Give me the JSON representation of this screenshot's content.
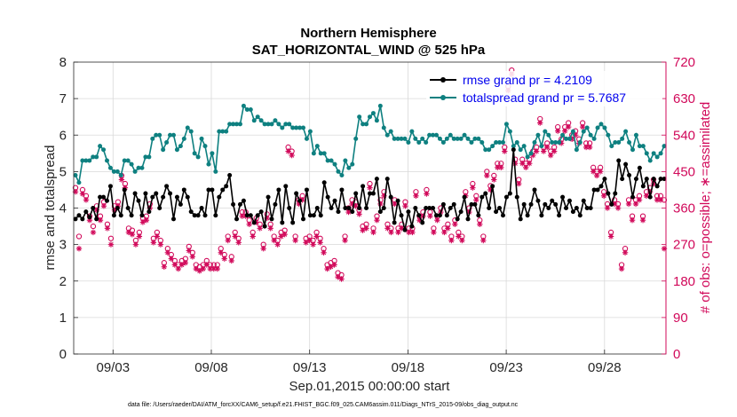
{
  "chart_data": {
    "type": "line",
    "title": "Northern Hemisphere",
    "subtitle": "SAT_HORIZONTAL_WIND @ 525 hPa",
    "xlabel": "Sep.01,2015 00:00:00 start",
    "ylabel_left": "rmse and totalspread",
    "ylabel_right": "# of obs: o=possible; ∗=assimilated",
    "footnote": "data file: /Users/raeder/DAI/ATM_forcXX/CAM6_setup/f.e21.FHIST_BGC.f09_025.CAM6assim.011/Diags_NTrS_2015-09/obs_diag_output.nc",
    "x_tick_labels": [
      "09/03",
      "09/08",
      "09/13",
      "09/18",
      "09/23",
      "09/28"
    ],
    "x_tick_days": [
      3,
      8,
      13,
      18,
      23,
      28
    ],
    "x_range_days": [
      1.0,
      31.125
    ],
    "ylim_left": [
      0,
      8
    ],
    "yticks_left": [
      "0",
      "1",
      "2",
      "3",
      "4",
      "5",
      "6",
      "7",
      "8"
    ],
    "ylim_right": [
      0,
      720
    ],
    "yticks_right": [
      "0",
      "90",
      "180",
      "270",
      "360",
      "450",
      "540",
      "630",
      "720"
    ],
    "grid": true,
    "legend_position": "top-right",
    "colors": {
      "rmse": "#000000",
      "spread": "#0e8080",
      "obs": "#d1095a",
      "axis_right": "#d1095a",
      "legend_text": "#0000ee"
    },
    "series": [
      {
        "name": "rmse grand pr = 4.2109",
        "color": "#000000",
        "values": [
          3.7,
          3.8,
          3.7,
          3.9,
          3.75,
          4.0,
          3.7,
          4.3,
          4.3,
          4.2,
          4.6,
          3.8,
          4.0,
          3.8,
          4.5,
          4.0,
          3.8,
          4.4,
          4.2,
          3.8,
          4.4,
          3.9,
          4.3,
          4.4,
          4.0,
          4.3,
          4.6,
          4.4,
          3.7,
          4.3,
          4.1,
          4.5,
          4.3,
          3.9,
          3.8,
          3.8,
          4.0,
          3.8,
          4.5,
          4.5,
          3.8,
          4.3,
          4.5,
          4.6,
          4.9,
          4.1,
          3.7,
          4.1,
          4.2,
          3.8,
          3.8,
          3.6,
          3.8,
          3.9,
          3.5,
          4.3,
          3.7,
          4.1,
          4.5,
          3.6,
          4.6,
          4.0,
          3.6,
          4.4,
          4.2,
          3.7,
          4.5,
          3.8,
          3.8,
          4.0,
          3.8,
          4.7,
          4.3,
          4.0,
          4.2,
          3.9,
          4.5,
          4.0,
          4.0,
          3.9,
          4.4,
          4.0,
          4.6,
          4.0,
          4.4,
          4.4,
          4.8,
          3.9,
          4.0,
          4.8,
          4.3,
          3.6,
          4.2,
          3.8,
          3.4,
          3.9,
          3.5,
          4.0,
          3.8,
          3.6,
          4.0,
          4.0,
          4.0,
          3.8,
          3.8,
          4.1,
          3.8,
          4.0,
          4.1,
          3.7,
          3.9,
          4.3,
          3.7,
          4.1,
          4.1,
          3.8,
          4.3,
          4.4,
          4.0,
          4.6,
          3.9,
          4.0,
          3.8,
          4.3,
          4.4,
          5.6,
          4.3,
          3.7,
          4.1,
          3.8,
          4.1,
          4.5,
          4.2,
          3.8,
          4.1,
          4.0,
          4.2,
          4.1,
          3.8,
          4.3,
          4.0,
          4.2,
          3.9,
          4.0,
          3.8,
          4.2,
          4.0,
          4.0,
          4.5,
          4.5,
          4.6,
          4.8,
          4.4,
          4.1,
          4.4,
          5.3,
          4.8,
          5.2,
          4.9,
          4.3,
          4.8,
          5.1,
          4.6,
          4.8,
          4.3,
          4.8,
          4.6,
          4.8,
          4.8
        ]
      },
      {
        "name": "totalspread grand pr = 5.7687",
        "color": "#0e8080",
        "values": [
          4.9,
          4.7,
          5.3,
          5.3,
          5.3,
          5.4,
          5.4,
          5.7,
          5.6,
          5.3,
          5.1,
          5.0,
          5.0,
          4.9,
          5.3,
          5.3,
          5.2,
          5.0,
          5.1,
          5.1,
          5.4,
          5.4,
          5.9,
          6.0,
          6.0,
          5.6,
          5.8,
          6.0,
          6.0,
          5.6,
          5.7,
          5.9,
          6.2,
          6.1,
          5.5,
          5.4,
          5.9,
          5.7,
          5.2,
          5.5,
          5.0,
          6.1,
          6.1,
          6.1,
          6.3,
          6.3,
          6.3,
          6.3,
          6.8,
          6.7,
          6.7,
          6.4,
          6.5,
          6.4,
          6.3,
          6.3,
          6.3,
          6.4,
          6.3,
          6.2,
          6.3,
          6.3,
          6.2,
          6.2,
          6.2,
          6.2,
          5.9,
          6.1,
          5.5,
          5.7,
          5.5,
          5.5,
          5.3,
          5.3,
          5.2,
          5.0,
          4.9,
          5.3,
          5.1,
          5.2,
          5.9,
          6.5,
          6.3,
          6.3,
          6.5,
          6.6,
          6.4,
          6.8,
          6.2,
          6.0,
          6.1,
          5.9,
          5.9,
          5.9,
          5.9,
          5.8,
          6.1,
          5.9,
          5.8,
          5.9,
          5.8,
          6.0,
          6.0,
          6.0,
          5.9,
          5.8,
          5.9,
          6.0,
          5.9,
          5.9,
          5.9,
          6.0,
          5.9,
          5.8,
          5.9,
          5.9,
          5.8,
          5.6,
          5.6,
          5.7,
          5.8,
          5.8,
          5.8,
          6.3,
          6.1,
          5.7,
          5.8,
          5.6,
          5.7,
          5.4,
          5.5,
          5.8,
          6.0,
          5.7,
          6.1,
          6.0,
          5.8,
          5.8,
          5.8,
          6.0,
          5.9,
          5.9,
          6.1,
          5.6,
          5.8,
          6.1,
          6.2,
          6.0,
          5.9,
          6.2,
          6.3,
          6.2,
          6.0,
          5.7,
          5.8,
          5.8,
          5.9,
          6.1,
          5.8,
          5.6,
          6.0,
          5.7,
          5.7,
          5.5,
          5.3,
          5.5,
          5.4,
          5.5,
          5.7
        ]
      }
    ],
    "obs_series": [
      {
        "name": "possible",
        "marker": "o",
        "color": "#d1095a",
        "values": [
          410,
          290,
          405,
          390,
          340,
          315,
          365,
          340,
          375,
          320,
          285,
          365,
          375,
          440,
          420,
          310,
          305,
          280,
          300,
          335,
          340,
          370,
          285,
          300,
          280,
          225,
          260,
          245,
          230,
          220,
          230,
          235,
          265,
          250,
          220,
          215,
          220,
          230,
          220,
          220,
          220,
          260,
          245,
          290,
          240,
          300,
          285,
          350,
          350,
          330,
          300,
          335,
          320,
          270,
          345,
          320,
          290,
          280,
          300,
          305,
          510,
          500,
          290,
          380,
          390,
          285,
          290,
          280,
          300,
          285,
          260,
          220,
          225,
          230,
          200,
          195,
          290,
          360,
          380,
          375,
          355,
          315,
          320,
          420,
          310,
          340,
          380,
          400,
          320,
          310,
          380,
          310,
          320,
          375,
          310,
          310,
          400,
          340,
          350,
          405,
          350,
          310,
          340,
          360,
          310,
          320,
          290,
          330,
          300,
          290,
          400,
          360,
          420,
          390,
          330,
          290,
          450,
          415,
          440,
          470,
          470,
          510,
          660,
          700,
          480,
          430,
          480,
          470,
          480,
          500,
          510,
          580,
          510,
          520,
          500,
          510,
          560,
          530,
          560,
          570,
          540,
          550,
          530,
          570,
          520,
          520,
          460,
          450,
          460,
          400,
          370,
          300,
          380,
          370,
          220,
          260,
          380,
          340,
          380,
          390,
          340,
          400,
          410,
          430,
          390,
          390,
          380
        ]
      },
      {
        "name": "assimilated",
        "marker": "*",
        "color": "#d1095a",
        "values": [
          400,
          260,
          395,
          380,
          330,
          300,
          355,
          330,
          365,
          310,
          270,
          355,
          365,
          430,
          410,
          300,
          295,
          270,
          290,
          325,
          330,
          360,
          275,
          290,
          270,
          215,
          250,
          235,
          220,
          210,
          220,
          225,
          255,
          240,
          210,
          205,
          210,
          220,
          210,
          210,
          210,
          250,
          235,
          280,
          230,
          290,
          275,
          340,
          340,
          320,
          290,
          325,
          310,
          260,
          335,
          310,
          280,
          270,
          290,
          295,
          500,
          490,
          280,
          370,
          380,
          275,
          280,
          270,
          290,
          275,
          250,
          210,
          215,
          220,
          190,
          185,
          280,
          350,
          370,
          365,
          345,
          305,
          310,
          410,
          300,
          330,
          370,
          390,
          310,
          300,
          370,
          300,
          310,
          365,
          300,
          300,
          390,
          330,
          340,
          395,
          340,
          300,
          330,
          350,
          300,
          310,
          280,
          320,
          290,
          280,
          390,
          350,
          410,
          380,
          320,
          280,
          440,
          405,
          430,
          460,
          460,
          500,
          650,
          690,
          470,
          420,
          470,
          460,
          470,
          490,
          500,
          570,
          500,
          510,
          490,
          500,
          550,
          520,
          550,
          560,
          530,
          540,
          520,
          560,
          510,
          510,
          450,
          440,
          450,
          390,
          360,
          290,
          370,
          360,
          210,
          250,
          370,
          330,
          370,
          380,
          330,
          390,
          400,
          420,
          380,
          380,
          260
        ]
      }
    ]
  }
}
